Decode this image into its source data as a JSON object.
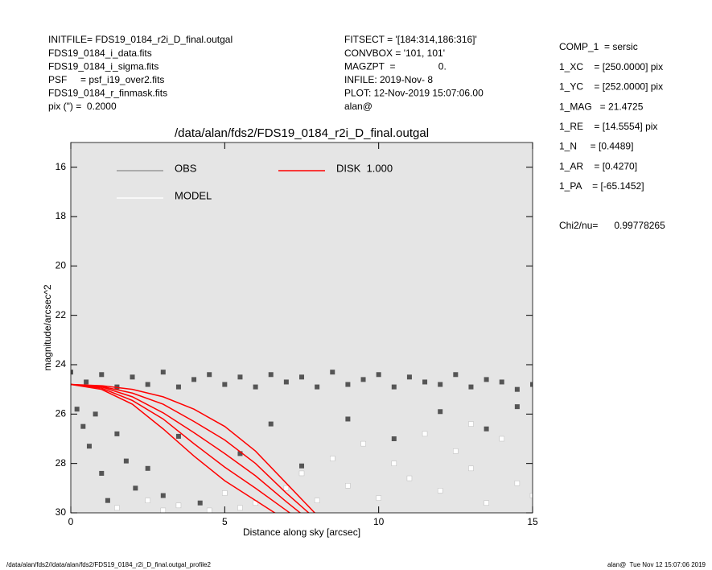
{
  "header": {
    "left": [
      "INITFILE= FDS19_0184_r2i_D_final.outgal",
      "FDS19_0184_i_data.fits",
      "FDS19_0184_i_sigma.fits",
      "PSF     = psf_i19_over2.fits",
      "FDS19_0184_r_finmask.fits",
      "pix (\") =  0.2000"
    ],
    "middle": [
      "FITSECT = '[184:314,186:316]'",
      "CONVBOX = '101, 101'",
      "MAGZPT  =                0.",
      "INFILE: 2019-Nov- 8",
      "PLOT: 12-Nov-2019 15:07:06.00",
      "alan@"
    ],
    "right": [
      "COMP_1  = sersic",
      "1_XC    = [250.0000] pix",
      "1_YC    = [252.0000] pix",
      "1_MAG   = 21.4725",
      "1_RE    = [14.5554] pix",
      "1_N     = [0.4489]",
      "1_AR    = [0.4270]",
      "1_PA    = [-65.1452]"
    ],
    "chi2": "Chi2/nu=      0.99778265"
  },
  "footer": {
    "left": "/data/alan/fds2//data/alan/fds2/FDS19_0184_r2i_D_final.outgal_profile2",
    "right": "alan@  Tue Nov 12 15:07:06 2019"
  },
  "chart_data": {
    "type": "scatter",
    "title": "/data/alan/fds2/FDS19_0184_r2i_D_final.outgal",
    "x_label": "Distance along sky [arcsec]",
    "y_label": "magnitude/arcsec^2",
    "xlim": [
      0,
      15
    ],
    "xticks": [
      0,
      5,
      10,
      15
    ],
    "ylim": [
      30,
      15
    ],
    "yticks": [
      16,
      18,
      20,
      22,
      24,
      26,
      28,
      30
    ],
    "background": "#e5e5e5",
    "series": [
      {
        "name": "OBS",
        "color": "#555555",
        "legend_color": "#999999",
        "x": [
          0,
          0.5,
          1,
          1.5,
          2,
          2.5,
          3,
          3.5,
          4,
          4.5,
          5,
          5.5,
          6,
          6.5,
          7,
          7.5,
          8,
          8.5,
          9,
          9.5,
          10,
          10.5,
          11,
          11.5,
          12,
          12.5,
          13,
          13.5,
          14,
          14.5,
          15,
          0.2,
          0.4,
          0.6,
          0.8,
          1.0,
          1.2,
          1.5,
          1.8,
          2.1,
          2.5,
          3.0,
          3.5,
          4.2,
          5.5,
          6.5,
          7.5,
          9,
          10.5,
          12,
          13.5,
          14.5
        ],
        "values": [
          24.3,
          24.7,
          24.4,
          24.9,
          24.5,
          24.8,
          24.3,
          24.9,
          24.6,
          24.4,
          24.8,
          24.5,
          24.9,
          24.4,
          24.7,
          24.5,
          24.9,
          24.3,
          24.8,
          24.6,
          24.4,
          24.9,
          24.5,
          24.7,
          24.8,
          24.4,
          24.9,
          24.6,
          24.7,
          25.0,
          24.8,
          25.8,
          26.5,
          27.3,
          26.0,
          28.4,
          29.5,
          26.8,
          27.9,
          29.0,
          28.2,
          29.3,
          26.9,
          29.6,
          27.6,
          26.4,
          28.1,
          26.2,
          27.0,
          25.9,
          26.6,
          25.7
        ]
      },
      {
        "name": "MODEL",
        "color": "#ffffff",
        "legend_color": "#ffffff",
        "x": [
          1.5,
          2.5,
          3.5,
          4.5,
          5,
          6,
          7,
          7.5,
          8.5,
          9,
          9.5,
          10,
          11,
          11.5,
          12,
          12.5,
          13,
          13.5,
          14,
          14.5,
          15,
          3,
          5.5,
          8,
          10.5,
          13
        ],
        "values": [
          29.8,
          29.5,
          29.7,
          29.9,
          29.2,
          29.6,
          29.0,
          28.4,
          27.8,
          28.9,
          27.2,
          29.4,
          28.6,
          26.8,
          29.1,
          27.5,
          28.2,
          29.6,
          27.0,
          28.8,
          29.3,
          29.9,
          29.8,
          29.5,
          28.0,
          26.4
        ]
      }
    ],
    "components": {
      "name": "DISK  1.000",
      "color": "#ff0000",
      "curves": [
        {
          "x": [
            0,
            1,
            2,
            3,
            4,
            5,
            6,
            7,
            8
          ],
          "values": [
            24.8,
            25.0,
            25.6,
            26.6,
            27.7,
            28.7,
            29.5,
            30.3,
            31
          ]
        },
        {
          "x": [
            0,
            1,
            2,
            3,
            4,
            5,
            6,
            7,
            8
          ],
          "values": [
            24.8,
            24.95,
            25.45,
            26.2,
            27.2,
            28.15,
            29.0,
            29.9,
            30.8
          ]
        },
        {
          "x": [
            0,
            1,
            2,
            3,
            4,
            5,
            6,
            7,
            8
          ],
          "values": [
            24.8,
            24.9,
            25.3,
            25.95,
            26.75,
            27.6,
            28.5,
            29.55,
            30.55
          ]
        },
        {
          "x": [
            0,
            1,
            2,
            3,
            4,
            5,
            6,
            7,
            8
          ],
          "values": [
            24.8,
            24.88,
            25.15,
            25.6,
            26.3,
            27.05,
            28.0,
            29.2,
            30.3
          ]
        },
        {
          "x": [
            0,
            1,
            2,
            3,
            4,
            5,
            6,
            7,
            8
          ],
          "values": [
            24.8,
            24.85,
            25.0,
            25.3,
            25.8,
            26.5,
            27.5,
            28.8,
            30.1
          ]
        }
      ]
    }
  }
}
